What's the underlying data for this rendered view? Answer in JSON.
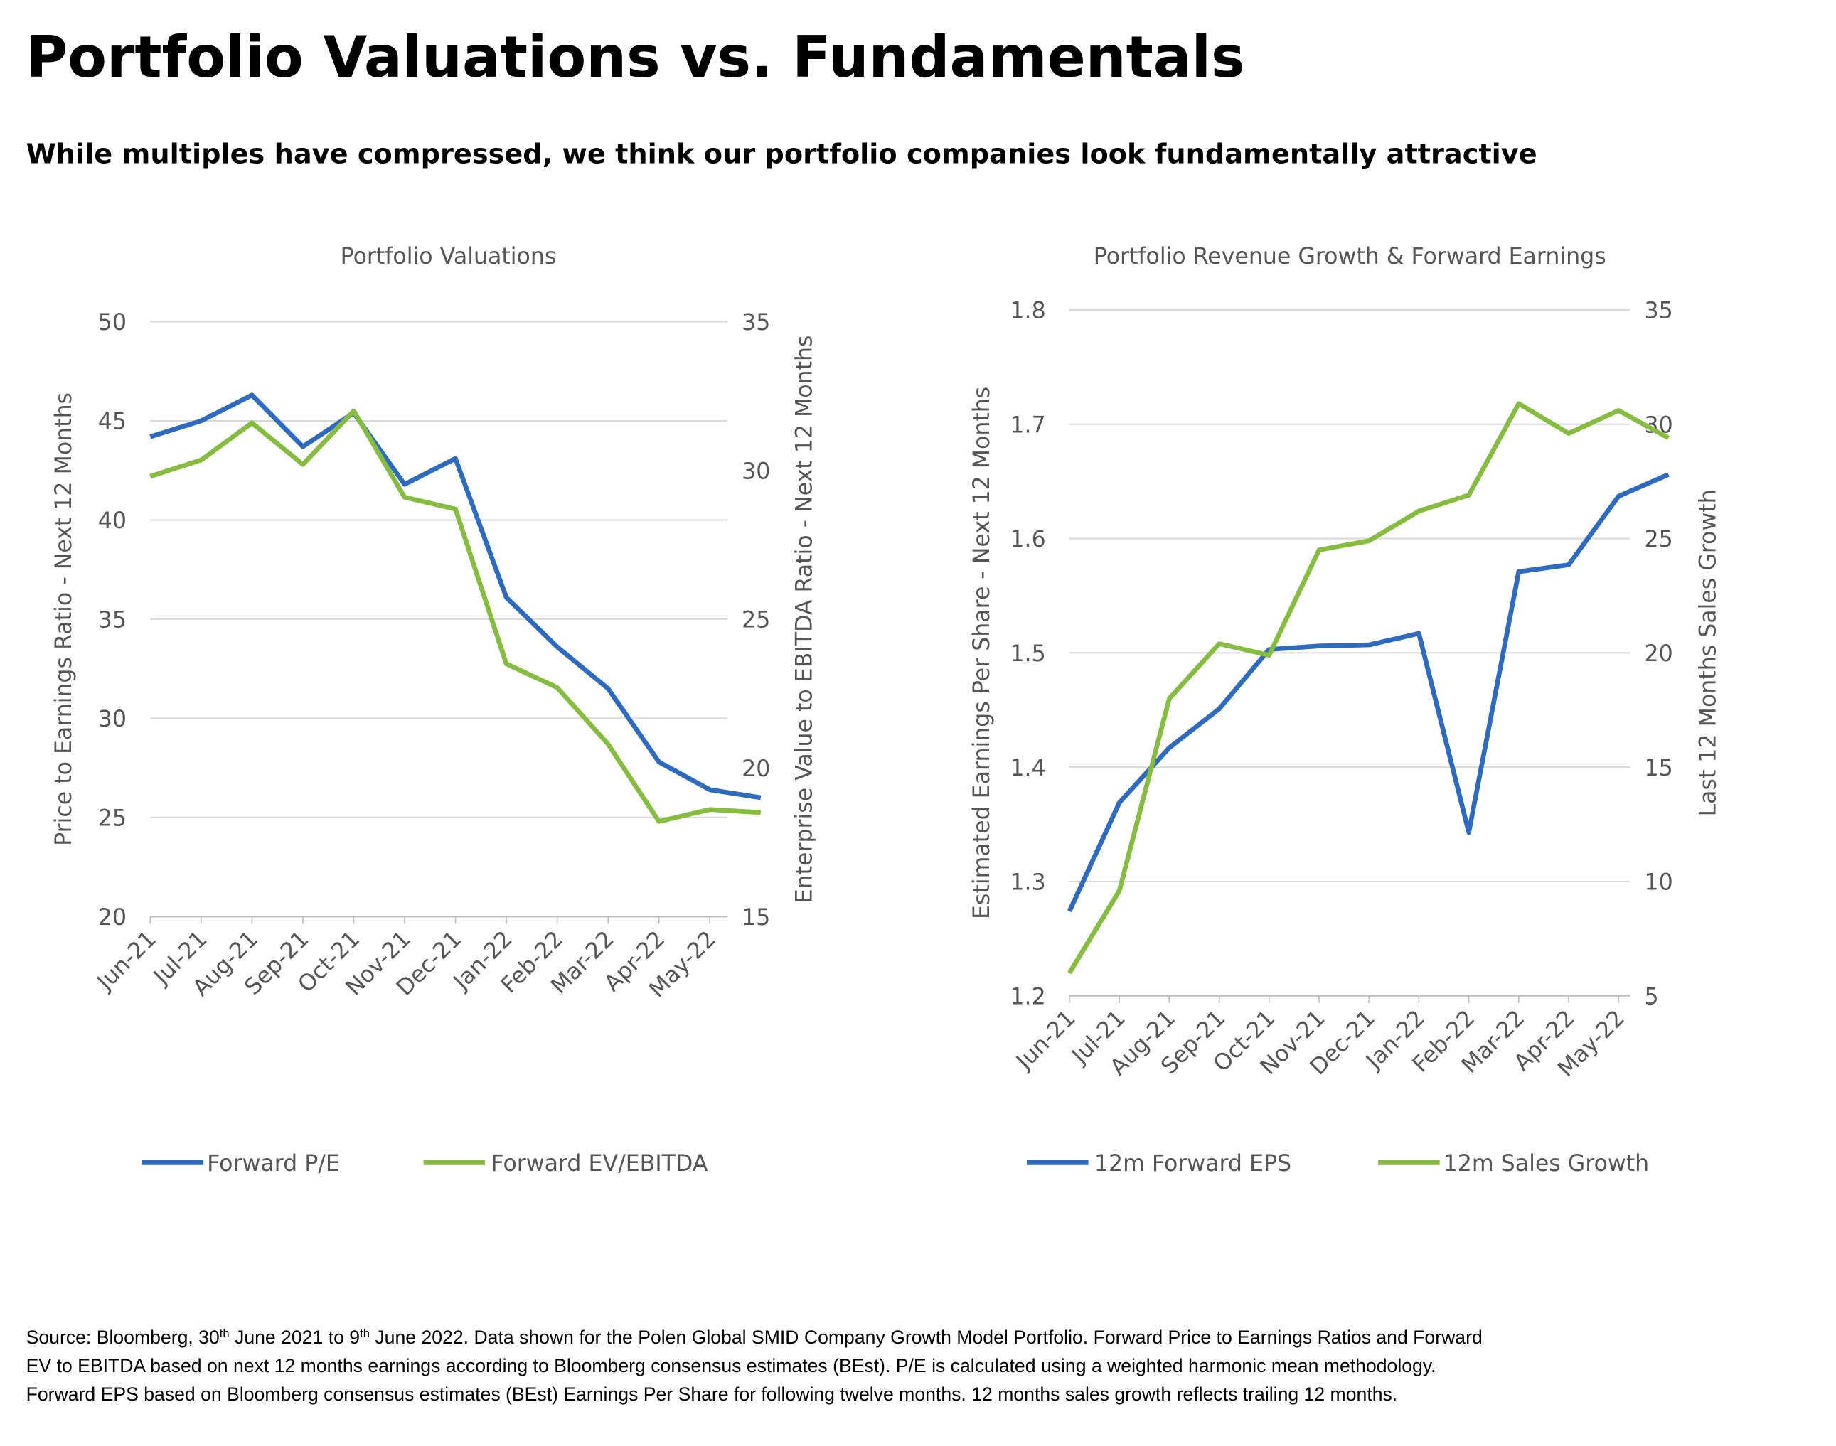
{
  "title": "Portfolio Valuations vs. Fundamentals",
  "subtitle": "While multiples have compressed, we think our portfolio companies look fundamentally attractive",
  "chart_data": [
    {
      "type": "line",
      "title": "Portfolio Valuations",
      "categories": [
        "Jun-21",
        "Jul-21",
        "Aug-21",
        "Sep-21",
        "Oct-21",
        "Nov-21",
        "Dec-21",
        "Jan-22",
        "Feb-22",
        "Mar-22",
        "Apr-22",
        "May-22",
        null
      ],
      "ylabel": "Price to Earnings Ratio - Next 12 Months",
      "y2label": "Enterprise Value to EBITDA Ratio - Next 12 Months",
      "ylim": [
        20,
        50
      ],
      "yticks": [
        20,
        25,
        30,
        35,
        40,
        45,
        50
      ],
      "y2lim": [
        15,
        35
      ],
      "y2ticks": [
        15,
        20,
        25,
        30,
        35
      ],
      "grid": true,
      "series": [
        {
          "name": "Forward P/E",
          "color": "#2e6bc0",
          "values": [
            44.2,
            45.0,
            46.3,
            43.7,
            45.4,
            41.8,
            43.1,
            36.1,
            33.6,
            31.5,
            27.8,
            26.4,
            26.0
          ]
        },
        {
          "name": "Forward EV/EBITDA",
          "color": "#86bc3f",
          "axis": "y2",
          "values": [
            29.8,
            30.35,
            31.6,
            30.2,
            32.0,
            29.1,
            28.7,
            23.5,
            22.7,
            20.8,
            18.2,
            18.6,
            18.5
          ]
        }
      ]
    },
    {
      "type": "line",
      "title": "Portfolio Revenue Growth & Forward Earnings",
      "categories": [
        "Jun-21",
        "Jul-21",
        "Aug-21",
        "Sep-21",
        "Oct-21",
        "Nov-21",
        "Dec-21",
        "Jan-22",
        "Feb-22",
        "Mar-22",
        "Apr-22",
        "May-22",
        null
      ],
      "ylabel": "Estimated Earnings Per Share - Next 12 Months",
      "y2label": "Last 12 Months Sales Growth",
      "ylim": [
        1.2,
        1.8
      ],
      "yticks": [
        1.2,
        1.3,
        1.4,
        1.5,
        1.6,
        1.7,
        1.8
      ],
      "y2lim": [
        5,
        35
      ],
      "y2ticks": [
        5,
        10,
        15,
        20,
        25,
        30,
        35
      ],
      "grid": true,
      "series": [
        {
          "name": "12m Forward EPS",
          "color": "#2e6bc0",
          "values": [
            1.274,
            1.369,
            1.417,
            1.451,
            1.503,
            1.506,
            1.507,
            1.517,
            1.343,
            1.571,
            1.577,
            1.637,
            1.656
          ]
        },
        {
          "name": "12m Sales Growth",
          "color": "#86bc3f",
          "axis": "y2",
          "values": [
            6.0,
            9.6,
            18.0,
            20.4,
            19.9,
            24.5,
            24.9,
            26.2,
            26.9,
            30.9,
            29.6,
            30.6,
            29.4
          ]
        }
      ]
    }
  ],
  "footnote": [
    [
      "Source: Bloomberg,  30",
      "th",
      " June 2021 to 9",
      "th",
      " June 2022. Data shown for the Polen Global SMID Company Growth Model Portfolio. Forward Price to Earnings Ratios and Forward"
    ],
    [
      "EV to EBITDA based on next 12 months earnings according to Bloomberg consensus estimates (BEst). P/E is calculated using a weighted harmonic mean methodology."
    ],
    [
      "Forward EPS based on Bloomberg consensus estimates (BEst) Earnings Per Share for following twelve months. 12 months sales growth reflects trailing 12 months."
    ]
  ]
}
